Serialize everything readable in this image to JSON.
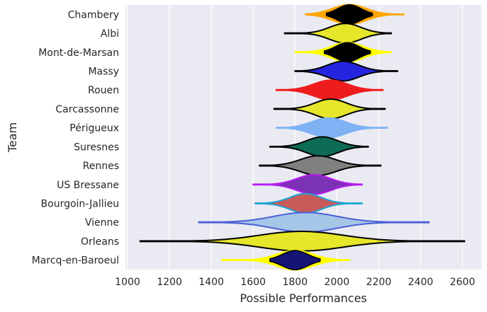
{
  "chart_data": {
    "type": "violin",
    "title": "",
    "xlabel": "Possible Performances",
    "ylabel": "Team",
    "xlim": [
      990,
      2690
    ],
    "xticks": [
      1000,
      1200,
      1400,
      1600,
      1800,
      2000,
      2200,
      2400,
      2600
    ],
    "grid": true,
    "background": "#eaeaf2",
    "series": [
      {
        "name": "Chambery",
        "center": 2060,
        "min": 1850,
        "max": 2320,
        "spread": 80,
        "fill": "#ffa500",
        "stroke": "#ffa500",
        "inner_fill": "#000000",
        "inner_stroke": "#000000",
        "inner_spread": 55
      },
      {
        "name": "Albi",
        "center": 2040,
        "min": 1750,
        "max": 2260,
        "spread": 75,
        "fill": "#e6e62b",
        "stroke": "#000000"
      },
      {
        "name": "Mont-de-Marsan",
        "center": 2050,
        "min": 1800,
        "max": 2260,
        "spread": 75,
        "fill": "#ffff00",
        "stroke": "#ffff00",
        "inner_fill": "#000000",
        "inner_stroke": "#000000",
        "inner_spread": 55
      },
      {
        "name": "Massy",
        "center": 2030,
        "min": 1800,
        "max": 2290,
        "spread": 75,
        "fill": "#2525e0",
        "stroke": "#000000"
      },
      {
        "name": "Rouen",
        "center": 1970,
        "min": 1710,
        "max": 2220,
        "spread": 80,
        "fill": "#ee1c1c",
        "stroke": "#ee1c1c"
      },
      {
        "name": "Carcassonne",
        "center": 1970,
        "min": 1700,
        "max": 2230,
        "spread": 75,
        "fill": "#e6e62b",
        "stroke": "#000000"
      },
      {
        "name": "Périgueux",
        "center": 1960,
        "min": 1710,
        "max": 2240,
        "spread": 80,
        "fill": "#7eb2f5",
        "stroke": "#7eb2f5"
      },
      {
        "name": "Suresnes",
        "center": 1930,
        "min": 1680,
        "max": 2150,
        "spread": 75,
        "fill": "#0e6b55",
        "stroke": "#000000"
      },
      {
        "name": "Rennes",
        "center": 1910,
        "min": 1630,
        "max": 2210,
        "spread": 85,
        "fill": "#808080",
        "stroke": "#000000"
      },
      {
        "name": "US Bressane",
        "center": 1890,
        "min": 1600,
        "max": 2120,
        "spread": 80,
        "fill": "#7b32b5",
        "stroke": "#b51bf0"
      },
      {
        "name": "Bourgoin-Jallieu",
        "center": 1850,
        "min": 1610,
        "max": 2120,
        "spread": 75,
        "fill": "#c85a5a",
        "stroke": "#1aa5d5"
      },
      {
        "name": "Vienne",
        "center": 1850,
        "min": 1340,
        "max": 2440,
        "spread": 150,
        "fill": "#a6c6e8",
        "stroke": "#4a5fd8"
      },
      {
        "name": "Orleans",
        "center": 1830,
        "min": 1060,
        "max": 2610,
        "spread": 200,
        "fill": "#e6e62b",
        "stroke": "#000000"
      },
      {
        "name": "Marcq-en-Baroeul",
        "center": 1800,
        "min": 1450,
        "max": 2060,
        "spread": 85,
        "fill": "#ffff00",
        "stroke": "#ffff00",
        "inner_fill": "#151575",
        "inner_stroke": "#000000",
        "inner_spread": 60
      }
    ]
  }
}
